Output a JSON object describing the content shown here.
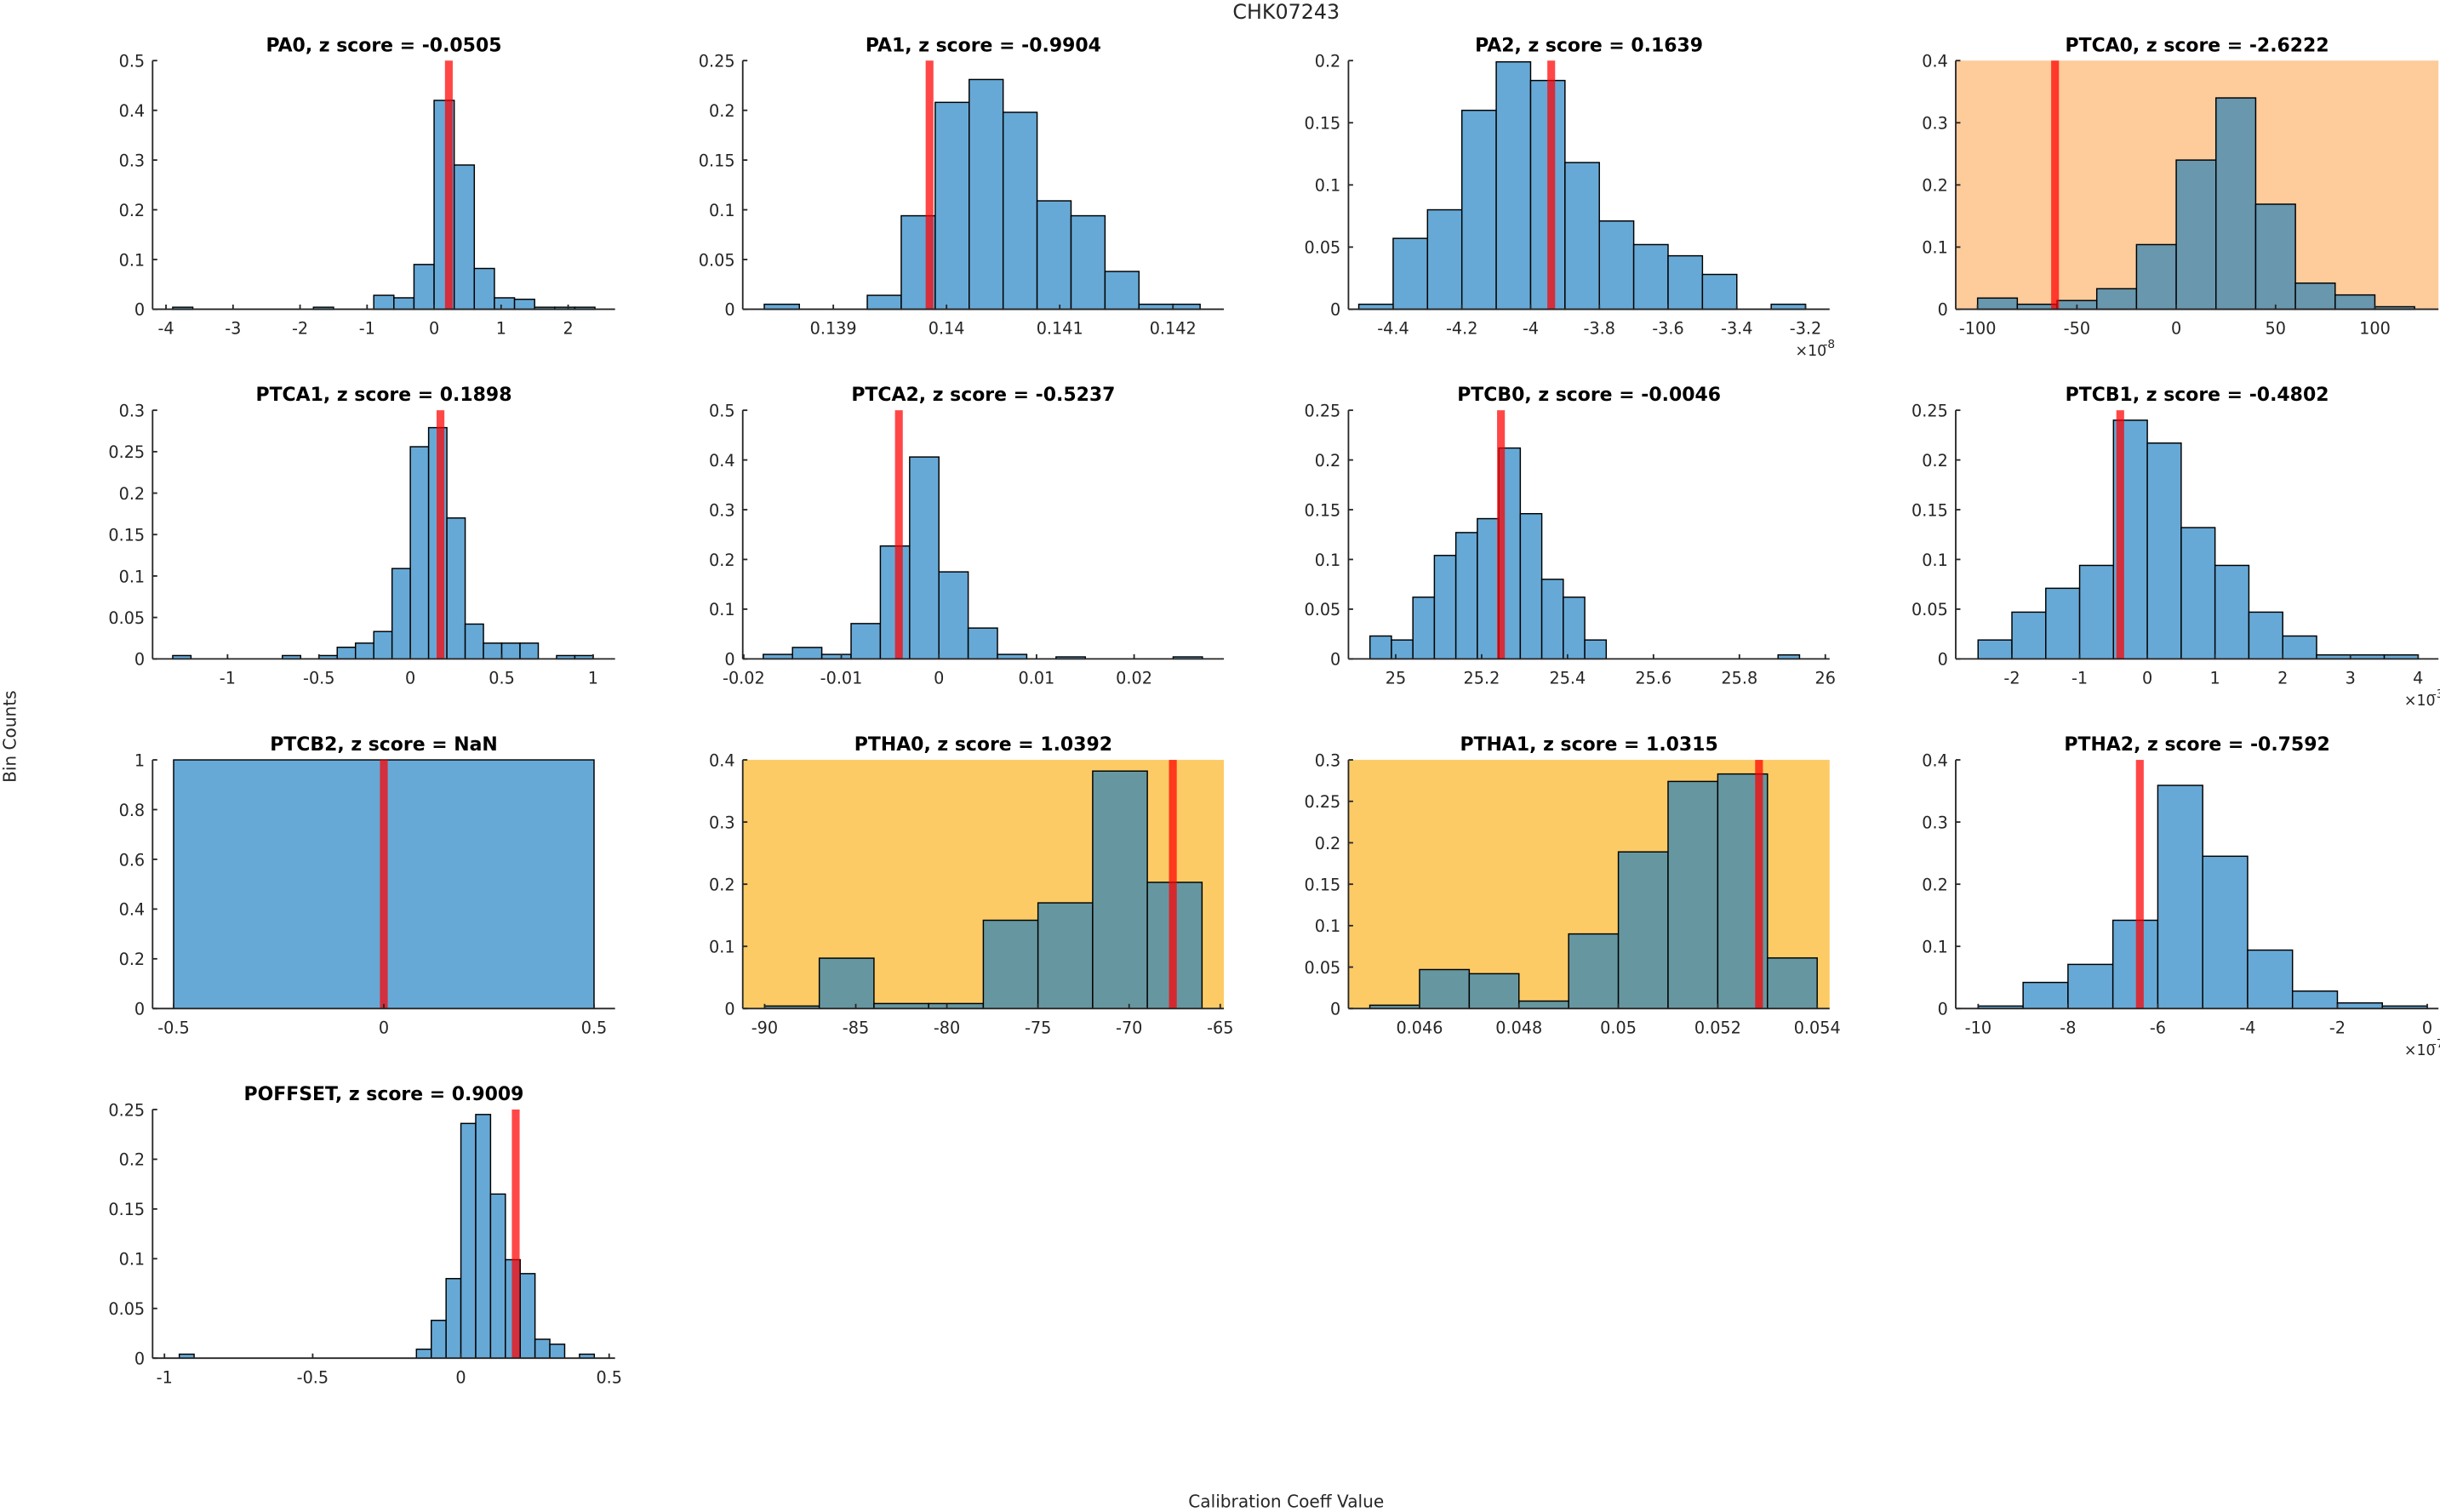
{
  "figure": {
    "title": "CHK07243",
    "xlabel": "Calibration Coeff Value",
    "ylabel": "Bin Counts"
  },
  "colors": {
    "bar_normal": "#67a9d6",
    "bar_highlight": "#6697a0",
    "bar_highlight_orange": "#6897ae",
    "marker": "#ff0000",
    "bg_warning_light": "#fecb9a",
    "bg_warning": "#fdcb66",
    "axis": "#262626"
  },
  "chart_data": [
    {
      "type": "bar",
      "title": "PA0, z score = -0.0505",
      "param": "PA0",
      "z_score": "-0.0505",
      "background": "none",
      "xlim": [
        -4.2,
        2.7
      ],
      "ylim": [
        0,
        0.5
      ],
      "xticks": [
        -4,
        -3,
        -2,
        -1,
        0,
        1,
        2
      ],
      "xtick_labels": [
        "-4",
        "-3",
        "-2",
        "-1",
        "0",
        "1",
        "2"
      ],
      "yticks": [
        0,
        0.1,
        0.2,
        0.3,
        0.4,
        0.5
      ],
      "ytick_labels": [
        "0",
        "0.1",
        "0.2",
        "0.3",
        "0.4",
        "0.5"
      ],
      "x_exponent": null,
      "bin_edges": [
        -3.9,
        -3.6,
        -3.3,
        -3.0,
        -2.7,
        -2.4,
        -2.1,
        -1.8,
        -1.5,
        -1.2,
        -0.9,
        -0.6,
        -0.3,
        0.0,
        0.3,
        0.6,
        0.9,
        1.2,
        1.5,
        1.8,
        2.1,
        2.4
      ],
      "values": [
        0.004,
        0,
        0,
        0,
        0,
        0,
        0,
        0.004,
        0,
        0,
        0.028,
        0.023,
        0.09,
        0.42,
        0.29,
        0.082,
        0.023,
        0.02,
        0.004,
        0.004,
        0.004
      ],
      "marker_x": 0.22
    },
    {
      "type": "bar",
      "title": "PA1, z score = -0.9904",
      "param": "PA1",
      "z_score": "-0.9904",
      "background": "none",
      "xlim": [
        0.1382,
        0.14245
      ],
      "ylim": [
        0,
        0.25
      ],
      "xticks": [
        0.139,
        0.14,
        0.141,
        0.142
      ],
      "xtick_labels": [
        "0.139",
        "0.14",
        "0.141",
        "0.142"
      ],
      "yticks": [
        0,
        0.05,
        0.1,
        0.15,
        0.2,
        0.25
      ],
      "ytick_labels": [
        "0",
        "0.05",
        "0.1",
        "0.15",
        "0.2",
        "0.25"
      ],
      "x_exponent": null,
      "bin_edges": [
        0.13839,
        0.1387,
        0.139,
        0.1393,
        0.1396,
        0.1399,
        0.1402,
        0.1405,
        0.1408,
        0.1411,
        0.1414,
        0.1417,
        0.142,
        0.14224
      ],
      "values": [
        0.005,
        0,
        0,
        0.014,
        0.094,
        0.208,
        0.231,
        0.198,
        0.109,
        0.094,
        0.038,
        0.005,
        0.005
      ],
      "marker_x": 0.13985
    },
    {
      "type": "bar",
      "title": "PA2, z score = 0.1639",
      "param": "PA2",
      "z_score": "0.1639",
      "background": "none",
      "xlim": [
        -4.53,
        -3.13
      ],
      "ylim": [
        0,
        0.2
      ],
      "xticks": [
        -4.4,
        -4.2,
        -4.0,
        -3.8,
        -3.6,
        -3.4,
        -3.2
      ],
      "xtick_labels": [
        "-4.4",
        "-4.2",
        "-4",
        "-3.8",
        "-3.6",
        "-3.4",
        "-3.2"
      ],
      "yticks": [
        0,
        0.05,
        0.1,
        0.15,
        0.2
      ],
      "ytick_labels": [
        "0",
        "0.05",
        "0.1",
        "0.15",
        "0.2"
      ],
      "x_exponent": "-8",
      "bin_edges": [
        -4.5,
        -4.4,
        -4.3,
        -4.2,
        -4.1,
        -4.0,
        -3.9,
        -3.8,
        -3.7,
        -3.6,
        -3.5,
        -3.4,
        -3.3,
        -3.2
      ],
      "values": [
        0.004,
        0.057,
        0.08,
        0.16,
        0.199,
        0.184,
        0.118,
        0.071,
        0.052,
        0.043,
        0.028,
        0,
        0.004
      ],
      "marker_x": -3.94
    },
    {
      "type": "bar",
      "title": "PTCA0, z score = -2.6222",
      "param": "PTCA0",
      "z_score": "-2.6222",
      "background": "warning_light",
      "xlim": [
        -111,
        132
      ],
      "ylim": [
        0,
        0.4
      ],
      "xticks": [
        -100,
        -50,
        0,
        50,
        100
      ],
      "xtick_labels": [
        "-100",
        "-50",
        "0",
        "50",
        "100"
      ],
      "yticks": [
        0,
        0.1,
        0.2,
        0.3,
        0.4
      ],
      "ytick_labels": [
        "0",
        "0.1",
        "0.2",
        "0.3",
        "0.4"
      ],
      "x_exponent": null,
      "bin_edges": [
        -100,
        -80,
        -60,
        -40,
        -20,
        0,
        20,
        40,
        60,
        80,
        100,
        120
      ],
      "values": [
        0.018,
        0.008,
        0.014,
        0.033,
        0.104,
        0.24,
        0.34,
        0.169,
        0.042,
        0.023,
        0.004
      ],
      "marker_x": -61
    },
    {
      "type": "bar",
      "title": "PTCA1, z score = 0.1898",
      "param": "PTCA1",
      "z_score": "0.1898",
      "background": "none",
      "xlim": [
        -1.41,
        1.12
      ],
      "ylim": [
        0,
        0.3
      ],
      "xticks": [
        -1,
        -0.5,
        0,
        0.5,
        1
      ],
      "xtick_labels": [
        "-1",
        "-0.5",
        "0",
        "0.5",
        "1"
      ],
      "yticks": [
        0,
        0.05,
        0.1,
        0.15,
        0.2,
        0.25,
        0.3
      ],
      "ytick_labels": [
        "0",
        "0.05",
        "0.1",
        "0.15",
        "0.2",
        "0.25",
        "0.3"
      ],
      "x_exponent": null,
      "bin_edges": [
        -1.3,
        -1.2,
        -1.1,
        -1.0,
        -0.9,
        -0.8,
        -0.7,
        -0.6,
        -0.5,
        -0.4,
        -0.3,
        -0.2,
        -0.1,
        0.0,
        0.1,
        0.2,
        0.3,
        0.4,
        0.5,
        0.6,
        0.7,
        0.8,
        0.9,
        1.0
      ],
      "values": [
        0.004,
        0,
        0,
        0,
        0,
        0,
        0.004,
        0,
        0.004,
        0.014,
        0.019,
        0.033,
        0.109,
        0.256,
        0.279,
        0.17,
        0.042,
        0.019,
        0.019,
        0.019,
        0,
        0.004,
        0.004
      ],
      "marker_x": 0.165
    },
    {
      "type": "bar",
      "title": "PTCA2, z score = -0.5237",
      "param": "PTCA2",
      "z_score": "-0.5237",
      "background": "none",
      "xlim": [
        -0.0201,
        0.0292
      ],
      "ylim": [
        0,
        0.5
      ],
      "xticks": [
        -0.02,
        -0.01,
        0,
        0.01,
        0.02
      ],
      "xtick_labels": [
        "-0.02",
        "-0.01",
        "0",
        "0.01",
        "0.02"
      ],
      "yticks": [
        0,
        0.1,
        0.2,
        0.3,
        0.4,
        0.5
      ],
      "ytick_labels": [
        "0",
        "0.1",
        "0.2",
        "0.3",
        "0.4",
        "0.5"
      ],
      "x_exponent": null,
      "bin_edges": [
        -0.018,
        -0.015,
        -0.012,
        -0.009,
        -0.006,
        -0.003,
        0.0,
        0.003,
        0.006,
        0.009,
        0.012,
        0.015,
        0.018,
        0.021,
        0.024,
        0.027
      ],
      "values": [
        0.009,
        0.023,
        0.009,
        0.071,
        0.227,
        0.406,
        0.175,
        0.062,
        0.009,
        0,
        0.004,
        0,
        0,
        0,
        0.004
      ],
      "marker_x": -0.0041
    },
    {
      "type": "bar",
      "title": "PTCB0, z score = -0.0046",
      "param": "PTCB0",
      "z_score": "-0.0046",
      "background": "none",
      "xlim": [
        24.89,
        26.01
      ],
      "ylim": [
        0,
        0.25
      ],
      "xticks": [
        25,
        25.2,
        25.4,
        25.6,
        25.8,
        26
      ],
      "xtick_labels": [
        "25",
        "25.2",
        "25.4",
        "25.6",
        "25.8",
        "26"
      ],
      "yticks": [
        0,
        0.05,
        0.1,
        0.15,
        0.2,
        0.25
      ],
      "ytick_labels": [
        "0",
        "0.05",
        "0.1",
        "0.15",
        "0.2",
        "0.25"
      ],
      "x_exponent": null,
      "bin_edges": [
        24.94,
        24.99,
        25.04,
        25.09,
        25.14,
        25.19,
        25.24,
        25.29,
        25.34,
        25.39,
        25.44,
        25.49,
        25.54,
        25.59,
        25.64,
        25.69,
        25.74,
        25.79,
        25.84,
        25.89,
        25.94
      ],
      "values": [
        0.023,
        0.019,
        0.062,
        0.104,
        0.127,
        0.141,
        0.212,
        0.146,
        0.08,
        0.062,
        0.019,
        0,
        0,
        0,
        0,
        0,
        0,
        0,
        0,
        0.004
      ],
      "marker_x": 25.245
    },
    {
      "type": "bar",
      "title": "PTCB1, z score = -0.4802",
      "param": "PTCB1",
      "z_score": "-0.4802",
      "background": "none",
      "xlim": [
        -2.83,
        4.3
      ],
      "ylim": [
        0,
        0.25
      ],
      "xticks": [
        -2,
        -1,
        0,
        1,
        2,
        3,
        4
      ],
      "xtick_labels": [
        "-2",
        "-1",
        "0",
        "1",
        "2",
        "3",
        "4"
      ],
      "yticks": [
        0,
        0.05,
        0.1,
        0.15,
        0.2,
        0.25
      ],
      "ytick_labels": [
        "0",
        "0.05",
        "0.1",
        "0.15",
        "0.2",
        "0.25"
      ],
      "x_exponent": "-3",
      "bin_edges": [
        -2.5,
        -2.0,
        -1.5,
        -1.0,
        -0.5,
        0.0,
        0.5,
        1.0,
        1.5,
        2.0,
        2.5,
        3.0,
        3.5,
        4.0
      ],
      "values": [
        0.019,
        0.047,
        0.071,
        0.094,
        0.24,
        0.217,
        0.132,
        0.094,
        0.047,
        0.023,
        0.004,
        0.004,
        0.004
      ],
      "marker_x": -0.4
    },
    {
      "type": "bar",
      "title": "PTCB2, z score = NaN",
      "param": "PTCB2",
      "z_score": "NaN",
      "background": "none",
      "xlim": [
        -0.55,
        0.55
      ],
      "ylim": [
        0,
        1
      ],
      "xticks": [
        -0.5,
        0,
        0.5
      ],
      "xtick_labels": [
        "-0.5",
        "0",
        "0.5"
      ],
      "yticks": [
        0,
        0.2,
        0.4,
        0.6,
        0.8,
        1
      ],
      "ytick_labels": [
        "0",
        "0.2",
        "0.4",
        "0.6",
        "0.8",
        "1"
      ],
      "x_exponent": null,
      "bin_edges": [
        -0.5,
        0.5
      ],
      "values": [
        1.0
      ],
      "marker_x": 0
    },
    {
      "type": "bar",
      "title": "PTHA0, z score = 1.0392",
      "param": "PTHA0",
      "z_score": "1.0392",
      "background": "warning",
      "xlim": [
        -91.2,
        -64.8
      ],
      "ylim": [
        0,
        0.4
      ],
      "xticks": [
        -90,
        -85,
        -80,
        -75,
        -70,
        -65
      ],
      "xtick_labels": [
        "-90",
        "-85",
        "-80",
        "-75",
        "-70",
        "-65"
      ],
      "yticks": [
        0,
        0.1,
        0.2,
        0.3,
        0.4
      ],
      "ytick_labels": [
        "0",
        "0.1",
        "0.2",
        "0.3",
        "0.4"
      ],
      "x_exponent": null,
      "bin_edges": [
        -90,
        -87,
        -84,
        -81,
        -78,
        -75,
        -72,
        -69,
        -66
      ],
      "values": [
        0.004,
        0.081,
        0.008,
        0.008,
        0.142,
        0.17,
        0.382,
        0.203
      ],
      "marker_x": -67.6
    },
    {
      "type": "bar",
      "title": "PTHA1, z score = 1.0315",
      "param": "PTHA1",
      "z_score": "1.0315",
      "background": "warning",
      "xlim": [
        0.04457,
        0.05425
      ],
      "ylim": [
        0,
        0.3
      ],
      "xticks": [
        0.046,
        0.048,
        0.05,
        0.052,
        0.054
      ],
      "xtick_labels": [
        "0.046",
        "0.048",
        "0.05",
        "0.052",
        "0.054"
      ],
      "yticks": [
        0,
        0.05,
        0.1,
        0.15,
        0.2,
        0.25,
        0.3
      ],
      "ytick_labels": [
        "0",
        "0.05",
        "0.1",
        "0.15",
        "0.2",
        "0.25",
        "0.3"
      ],
      "x_exponent": null,
      "bin_edges": [
        0.045,
        0.046,
        0.047,
        0.048,
        0.049,
        0.05,
        0.051,
        0.052,
        0.053,
        0.054
      ],
      "values": [
        0.004,
        0.047,
        0.042,
        0.009,
        0.09,
        0.189,
        0.274,
        0.283,
        0.061
      ],
      "marker_x": 0.05283
    },
    {
      "type": "bar",
      "title": "PTHA2, z score = -0.7592",
      "param": "PTHA2",
      "z_score": "-0.7592",
      "background": "none",
      "xlim": [
        -10.5,
        0.25
      ],
      "ylim": [
        0,
        0.4
      ],
      "xticks": [
        -10,
        -8,
        -6,
        -4,
        -2,
        0
      ],
      "xtick_labels": [
        "-10",
        "-8",
        "-6",
        "-4",
        "-2",
        "0"
      ],
      "yticks": [
        0,
        0.1,
        0.2,
        0.3,
        0.4
      ],
      "ytick_labels": [
        "0",
        "0.1",
        "0.2",
        "0.3",
        "0.4"
      ],
      "x_exponent": "-7",
      "bin_edges": [
        -10,
        -9,
        -8,
        -7,
        -6,
        -5,
        -4,
        -3,
        -2,
        -1,
        0
      ],
      "values": [
        0.004,
        0.042,
        0.071,
        0.142,
        0.359,
        0.245,
        0.094,
        0.028,
        0.009,
        0.004
      ],
      "marker_x": -6.4
    },
    {
      "type": "bar",
      "title": "POFFSET, z score = 0.9009",
      "param": "POFFSET",
      "z_score": "0.9009",
      "background": "none",
      "xlim": [
        -1.04,
        0.52
      ],
      "ylim": [
        0,
        0.25
      ],
      "xticks": [
        -1,
        -0.5,
        0,
        0.5
      ],
      "xtick_labels": [
        "-1",
        "-0.5",
        "0",
        "0.5"
      ],
      "yticks": [
        0,
        0.05,
        0.1,
        0.15,
        0.2,
        0.25
      ],
      "ytick_labels": [
        "0",
        "0.05",
        "0.1",
        "0.15",
        "0.2",
        "0.25"
      ],
      "x_exponent": null,
      "bin_edges": [
        -0.95,
        -0.9,
        -0.85,
        -0.8,
        -0.75,
        -0.7,
        -0.65,
        -0.6,
        -0.55,
        -0.5,
        -0.45,
        -0.4,
        -0.35,
        -0.3,
        -0.25,
        -0.2,
        -0.15,
        -0.1,
        -0.05,
        0.0,
        0.05,
        0.1,
        0.15,
        0.2,
        0.25,
        0.3,
        0.35,
        0.4,
        0.45
      ],
      "values": [
        0.004,
        0,
        0,
        0,
        0,
        0,
        0,
        0,
        0,
        0,
        0,
        0,
        0,
        0,
        0,
        0,
        0.009,
        0.038,
        0.08,
        0.236,
        0.245,
        0.165,
        0.099,
        0.085,
        0.019,
        0.014,
        0,
        0.004
      ],
      "marker_x": 0.185
    }
  ]
}
